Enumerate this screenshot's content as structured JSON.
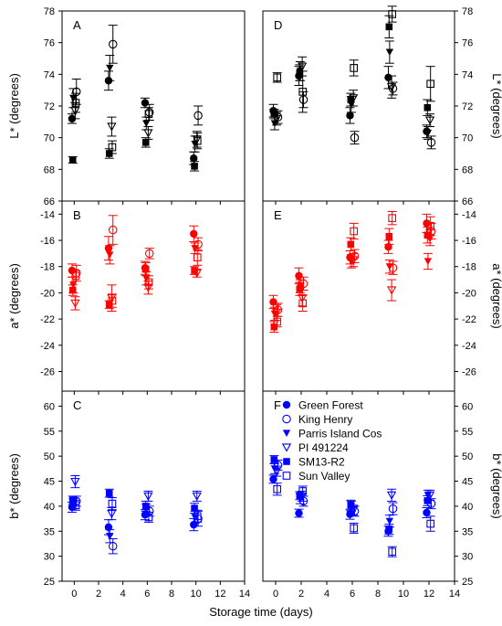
{
  "figure": {
    "xlabel": "Storage time (days)",
    "legend_position": "inside panel F, upper-right"
  },
  "colors": {
    "L": "#000000",
    "a": "#ff0000",
    "b": "#0000ff"
  },
  "legend": [
    {
      "name": "Green Forest",
      "marker": "filled-circle"
    },
    {
      "name": "King Henry",
      "marker": "open-circle"
    },
    {
      "name": "Parris Island Cos",
      "marker": "filled-triangle-down"
    },
    {
      "name": "PI 491224",
      "marker": "open-triangle-down"
    },
    {
      "name": "SM13-R2",
      "marker": "filled-square"
    },
    {
      "name": "Sun Valley",
      "marker": "open-square"
    }
  ],
  "chart_data": [
    {
      "panel": "A",
      "type": "scatter",
      "color_key": "L",
      "xlabel": "",
      "ylabel": "L* (degrees)",
      "ylabel_side": "left",
      "xlim": [
        -1,
        14
      ],
      "ylim": [
        66,
        78
      ],
      "yticks": [
        66,
        68,
        70,
        72,
        74,
        76,
        78
      ],
      "x": [
        0,
        3,
        6,
        10
      ],
      "show_x_ticklabels": false,
      "series": [
        {
          "name": "Green Forest",
          "values": [
            71.2,
            73.6,
            72.2,
            68.7
          ],
          "err": [
            0.3,
            0.6,
            0.3,
            0.4
          ]
        },
        {
          "name": "King Henry",
          "values": [
            72.9,
            75.9,
            71.6,
            71.4
          ],
          "err": [
            0.8,
            1.2,
            0.5,
            0.6
          ]
        },
        {
          "name": "Parris Island Cos",
          "values": [
            72.5,
            74.4,
            70.9,
            69.6
          ],
          "err": [
            0.6,
            0.8,
            0.4,
            0.5
          ]
        },
        {
          "name": "PI 491224",
          "values": [
            71.7,
            70.7,
            70.3,
            69.9
          ],
          "err": [
            0.5,
            0.6,
            0.4,
            0.5
          ]
        },
        {
          "name": "SM13-R2",
          "values": [
            68.6,
            69.0,
            69.7,
            68.2
          ],
          "err": [
            0.2,
            0.3,
            0.3,
            0.3
          ]
        },
        {
          "name": "Sun Valley",
          "values": [
            72.2,
            69.4,
            71.5,
            69.8
          ],
          "err": [
            0.6,
            0.4,
            0.4,
            0.5
          ]
        }
      ]
    },
    {
      "panel": "B",
      "type": "scatter",
      "color_key": "a",
      "xlabel": "",
      "ylabel": "a* (degrees)",
      "ylabel_side": "left",
      "xlim": [
        -1,
        14
      ],
      "ylim": [
        -27.5,
        -13
      ],
      "yticks": [
        -26,
        -24,
        -22,
        -20,
        -18,
        -16,
        -14
      ],
      "x": [
        0,
        3,
        6,
        10
      ],
      "show_x_ticklabels": false,
      "series": [
        {
          "name": "Green Forest",
          "values": [
            -18.3,
            -16.6,
            -18.1,
            -15.5
          ],
          "err": [
            0.5,
            0.9,
            0.5,
            0.6
          ]
        },
        {
          "name": "King Henry",
          "values": [
            -18.5,
            -15.2,
            -17.0,
            -16.3
          ],
          "err": [
            0.6,
            1.1,
            0.4,
            0.5
          ]
        },
        {
          "name": "Parris Island Cos",
          "values": [
            -19.4,
            -17.1,
            -18.9,
            -16.6
          ],
          "err": [
            0.6,
            0.7,
            0.5,
            0.4
          ]
        },
        {
          "name": "PI 491224",
          "values": [
            -20.8,
            -20.4,
            -19.6,
            -18.5
          ],
          "err": [
            0.5,
            1.0,
            0.5,
            0.3
          ]
        },
        {
          "name": "SM13-R2",
          "values": [
            -19.8,
            -20.9,
            -18.2,
            -18.3
          ],
          "err": [
            0.4,
            0.3,
            0.5,
            0.3
          ]
        },
        {
          "name": "Sun Valley",
          "values": [
            -18.7,
            -20.6,
            -19.2,
            -17.3
          ],
          "err": [
            0.4,
            0.5,
            0.5,
            0.6
          ]
        }
      ]
    },
    {
      "panel": "C",
      "type": "scatter",
      "color_key": "b",
      "xlabel": "",
      "ylabel": "b* (degrees)",
      "ylabel_side": "left",
      "xlim": [
        -1,
        14
      ],
      "ylim": [
        25,
        63
      ],
      "yticks": [
        25,
        30,
        35,
        40,
        45,
        50,
        55,
        60
      ],
      "x": [
        0,
        3,
        6,
        10
      ],
      "show_x_ticklabels": true,
      "xticks": [
        0,
        2,
        4,
        6,
        8,
        10,
        12,
        14
      ],
      "series": [
        {
          "name": "Green Forest",
          "values": [
            39.8,
            35.8,
            38.3,
            36.3
          ],
          "err": [
            1.0,
            1.5,
            1.0,
            1.2
          ]
        },
        {
          "name": "King Henry",
          "values": [
            41.0,
            32.0,
            39.0,
            37.5
          ],
          "err": [
            1.0,
            1.5,
            1.0,
            1.5
          ]
        },
        {
          "name": "Parris Island Cos",
          "values": [
            40.5,
            34.0,
            39.4,
            37.8
          ],
          "err": [
            1.0,
            1.3,
            1.0,
            1.2
          ]
        },
        {
          "name": "PI 491224",
          "values": [
            44.9,
            38.5,
            42.0,
            42.0
          ],
          "err": [
            1.2,
            1.2,
            1.0,
            1.0
          ]
        },
        {
          "name": "SM13-R2",
          "values": [
            41.2,
            42.6,
            40.0,
            39.6
          ],
          "err": [
            0.8,
            0.8,
            1.0,
            1.0
          ]
        },
        {
          "name": "Sun Valley",
          "values": [
            40.2,
            40.5,
            37.8,
            38.0
          ],
          "err": [
            1.0,
            1.2,
            1.0,
            1.2
          ]
        }
      ]
    },
    {
      "panel": "D",
      "type": "scatter",
      "color_key": "L",
      "xlabel": "",
      "ylabel": "L* (degrees)",
      "ylabel_side": "right",
      "xlim": [
        -1,
        14
      ],
      "ylim": [
        66,
        78
      ],
      "yticks": [
        66,
        68,
        70,
        72,
        74,
        76,
        78
      ],
      "x": [
        0,
        2,
        6,
        9,
        12
      ],
      "show_x_ticklabels": false,
      "series": [
        {
          "name": "Green Forest",
          "values": [
            71.7,
            73.9,
            71.4,
            73.8,
            70.4
          ],
          "err": [
            0.4,
            0.6,
            0.5,
            0.7,
            0.4
          ]
        },
        {
          "name": "King Henry",
          "values": [
            71.3,
            72.4,
            70.0,
            73.1,
            69.7
          ],
          "err": [
            0.4,
            0.5,
            0.4,
            0.4,
            0.4
          ]
        },
        {
          "name": "Parris Island Cos",
          "values": [
            70.9,
            74.2,
            72.1,
            75.4,
            70.3
          ],
          "err": [
            0.4,
            0.6,
            0.5,
            0.7,
            0.4
          ]
        },
        {
          "name": "PI 491224",
          "values": [
            71.2,
            74.5,
            72.5,
            73.2,
            71.1
          ],
          "err": [
            0.4,
            0.6,
            0.5,
            0.7,
            0.4
          ]
        },
        {
          "name": "SM13-R2",
          "values": [
            71.5,
            74.1,
            72.4,
            77.0,
            71.9
          ],
          "err": [
            0.3,
            0.5,
            0.4,
            0.7,
            0.5
          ]
        },
        {
          "name": "Sun Valley",
          "values": [
            73.8,
            72.9,
            74.4,
            77.8,
            73.4
          ],
          "err": [
            0.3,
            1.3,
            0.5,
            0.5,
            1.1
          ]
        }
      ]
    },
    {
      "panel": "E",
      "type": "scatter",
      "color_key": "a",
      "xlabel": "",
      "ylabel": "a* (degrees)",
      "ylabel_side": "right",
      "xlim": [
        -1,
        14
      ],
      "ylim": [
        -27.5,
        -13
      ],
      "yticks": [
        -26,
        -24,
        -22,
        -20,
        -18,
        -16,
        -14
      ],
      "x": [
        0,
        2,
        6,
        9,
        12
      ],
      "show_x_ticklabels": false,
      "series": [
        {
          "name": "Green Forest",
          "values": [
            -20.7,
            -18.7,
            -17.3,
            -16.5,
            -14.7
          ],
          "err": [
            0.5,
            0.6,
            0.5,
            0.5,
            0.7
          ]
        },
        {
          "name": "King Henry",
          "values": [
            -21.3,
            -19.3,
            -17.2,
            -18.1,
            -15.3
          ],
          "err": [
            0.5,
            0.5,
            0.5,
            0.5,
            0.6
          ]
        },
        {
          "name": "Parris Island Cos",
          "values": [
            -21.6,
            -19.5,
            -17.6,
            -18.0,
            -17.6
          ],
          "err": [
            0.5,
            0.5,
            0.5,
            0.5,
            0.6
          ]
        },
        {
          "name": "PI 491224",
          "values": [
            -21.5,
            -20.4,
            -17.5,
            -19.8,
            -15.8
          ],
          "err": [
            0.6,
            0.6,
            0.5,
            0.8,
            0.6
          ]
        },
        {
          "name": "SM13-R2",
          "values": [
            -22.6,
            -19.7,
            -16.3,
            -15.7,
            -15.6
          ],
          "err": [
            0.4,
            0.5,
            0.5,
            0.6,
            0.6
          ]
        },
        {
          "name": "Sun Valley",
          "values": [
            -22.2,
            -20.8,
            -15.3,
            -14.3,
            -14.9
          ],
          "err": [
            0.4,
            0.6,
            0.6,
            0.5,
            0.7
          ]
        }
      ]
    },
    {
      "panel": "F",
      "type": "scatter",
      "color_key": "b",
      "xlabel": "",
      "ylabel": "b* (degrees)",
      "ylabel_side": "right",
      "xlim": [
        -1,
        14
      ],
      "ylim": [
        25,
        63
      ],
      "yticks": [
        25,
        30,
        35,
        40,
        45,
        50,
        55,
        60
      ],
      "x": [
        0,
        2,
        6,
        9,
        12
      ],
      "show_x_ticklabels": true,
      "xticks": [
        0,
        2,
        4,
        6,
        8,
        10,
        12,
        14
      ],
      "series": [
        {
          "name": "Green Forest",
          "values": [
            45.4,
            38.6,
            38.4,
            35.0,
            38.7
          ],
          "err": [
            0.8,
            0.8,
            1.0,
            1.0,
            1.0
          ]
        },
        {
          "name": "King Henry",
          "values": [
            48.2,
            41.0,
            39.0,
            39.5,
            40.5
          ],
          "err": [
            1.0,
            1.0,
            1.0,
            1.2,
            1.0
          ]
        },
        {
          "name": "Parris Island Cos",
          "values": [
            47.5,
            41.5,
            40.0,
            37.0,
            42.2
          ],
          "err": [
            1.0,
            1.0,
            1.0,
            1.2,
            1.0
          ]
        },
        {
          "name": "PI 491224",
          "values": [
            47.0,
            42.0,
            39.2,
            42.2,
            42.2
          ],
          "err": [
            1.0,
            1.0,
            1.0,
            1.2,
            1.0
          ]
        },
        {
          "name": "SM13-R2",
          "values": [
            49.3,
            42.1,
            40.2,
            35.4,
            41.1
          ],
          "err": [
            0.8,
            0.8,
            1.0,
            1.0,
            1.0
          ]
        },
        {
          "name": "Sun Valley",
          "values": [
            43.4,
            43.0,
            35.6,
            30.9,
            36.5
          ],
          "err": [
            1.2,
            1.0,
            1.0,
            1.0,
            1.5
          ]
        }
      ]
    }
  ]
}
